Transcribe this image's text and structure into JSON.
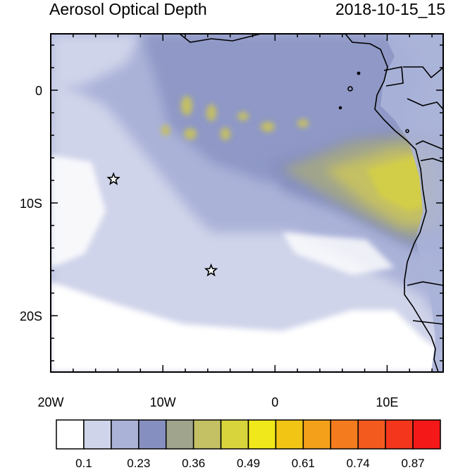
{
  "title": "Aerosol Optical Depth",
  "timestamp": "2018-10-15_15",
  "x_ticks": [
    {
      "label": "20W",
      "lon": -20
    },
    {
      "label": "10W",
      "lon": -10
    },
    {
      "label": "0",
      "lon": 0
    },
    {
      "label": "10E",
      "lon": 10
    }
  ],
  "y_ticks": [
    {
      "label": "0",
      "lat": 0
    },
    {
      "label": "10S",
      "lat": -10
    },
    {
      "label": "20S",
      "lat": -20
    }
  ],
  "extent": {
    "lon": [
      -20,
      15
    ],
    "lat": [
      -25,
      5
    ]
  },
  "colorbar": {
    "colors": [
      "#ffffff",
      "#d0d4ea",
      "#aab2d8",
      "#8690c0",
      "#a0a48c",
      "#c4c064",
      "#d8d43c",
      "#f0e81a",
      "#f2c414",
      "#f4a01a",
      "#f47c1e",
      "#f25a1e",
      "#f4361c",
      "#f41818"
    ],
    "labels": [
      "0.1",
      "0.23",
      "0.36",
      "0.49",
      "0.61",
      "0.74",
      "0.87"
    ]
  },
  "stations": [
    {
      "name": "star-1",
      "lon": -14.4,
      "lat": -7.9
    },
    {
      "name": "star-2",
      "lon": -5.7,
      "lat": -16.0
    }
  ]
}
